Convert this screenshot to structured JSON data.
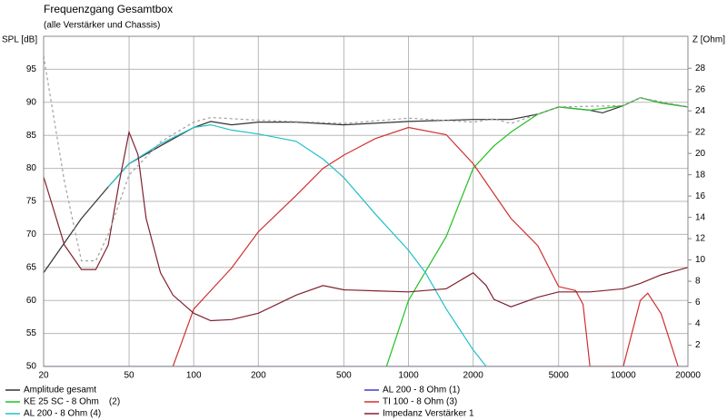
{
  "chart_data": {
    "type": "line",
    "title": "Frequenzgang Gesamtbox",
    "subtitle": "(alle Verstärker und Chassis)",
    "ylabel": "SPL [dB]",
    "y2label": "Z [Ohm]",
    "xscale": "log",
    "grid": true,
    "xlim": [
      20,
      20000
    ],
    "xticks": [
      20,
      50,
      100,
      200,
      500,
      1000,
      2000,
      5000,
      10000,
      20000
    ],
    "ylim": [
      50,
      100
    ],
    "yticks": [
      50,
      55,
      60,
      65,
      70,
      75,
      80,
      85,
      90,
      95
    ],
    "y2lim": [
      0,
      31
    ],
    "y2ticks": [
      2,
      4,
      6,
      8,
      10,
      12,
      14,
      16,
      18,
      20,
      22,
      24,
      26,
      28
    ],
    "series": [
      {
        "name": "Amplitude gesamt",
        "color": "#333333",
        "x": [
          20,
          30,
          40,
          50,
          70,
          100,
          120,
          150,
          200,
          300,
          500,
          1000,
          2000,
          3000,
          4000,
          5000,
          7000,
          8000,
          10000,
          12000,
          15000,
          20000
        ],
        "values": [
          64.2,
          72.4,
          77.2,
          80.7,
          83.4,
          86.2,
          87.1,
          86.6,
          87,
          87,
          86.6,
          87.1,
          87.4,
          87.4,
          88.2,
          89.3,
          88.8,
          88.4,
          89.5,
          90.7,
          89.9,
          89.3
        ]
      },
      {
        "name": "AL 200 - 8 Ohm (1)",
        "color": "#3b3bd0",
        "x": [
          20,
          20000
        ],
        "values": [
          50,
          50
        ]
      },
      {
        "name": "KE 25 SC - 8 Ohm    (2)",
        "color": "#22c022",
        "x": [
          790,
          1000,
          1500,
          2000,
          2500,
          3000,
          4000,
          5000,
          7000,
          10000,
          12000,
          15000,
          20000
        ],
        "values": [
          50,
          60,
          69.7,
          80,
          83.4,
          85.5,
          88.2,
          89.3,
          88.8,
          89.5,
          90.7,
          89.9,
          89.3
        ]
      },
      {
        "name": "TI 100 - 8 Ohm (3)",
        "color": "#d03030",
        "x": [
          80,
          100,
          150,
          200,
          300,
          400,
          500,
          700,
          1000,
          1500,
          2000,
          3000,
          4000,
          5000,
          6000,
          6500,
          7000,
          10000,
          12000,
          13000,
          15000,
          18000
        ],
        "values": [
          50,
          58.7,
          64.9,
          70.4,
          75.9,
          80,
          82,
          84.5,
          86.2,
          85.1,
          80.7,
          72.4,
          68.3,
          62.1,
          61.5,
          59.4,
          50,
          50,
          60,
          61.1,
          58,
          50
        ]
      },
      {
        "name": "AL 200 - 8 Ohm (4)",
        "color": "#20c0c8",
        "x": [
          40,
          50,
          70,
          100,
          120,
          150,
          200,
          300,
          400,
          500,
          700,
          1000,
          1200,
          1500,
          2000,
          2300
        ],
        "values": [
          77.2,
          80.7,
          83.7,
          86.2,
          86.6,
          85.8,
          85.2,
          84.1,
          81.4,
          78.6,
          73.1,
          67.6,
          64.2,
          58.7,
          52.5,
          50
        ]
      },
      {
        "name": "Impedanz Verstärker 1",
        "color": "#802030",
        "axis": "y2",
        "x": [
          20,
          25,
          30,
          35,
          40,
          45,
          50,
          55,
          60,
          70,
          80,
          100,
          120,
          150,
          200,
          300,
          400,
          500,
          700,
          1000,
          1500,
          2000,
          2300,
          2500,
          3000,
          4000,
          5000,
          7000,
          10000,
          12000,
          15000,
          20000
        ],
        "values": [
          17.8,
          11.4,
          9.1,
          9.1,
          11.4,
          17.3,
          22,
          19.9,
          13.9,
          8.8,
          6.7,
          5,
          4.3,
          4.4,
          5,
          6.7,
          7.6,
          7.2,
          7.1,
          7,
          7.3,
          8.8,
          7.6,
          6.3,
          5.6,
          6.5,
          7,
          7,
          7.3,
          7.8,
          8.6,
          9.3
        ]
      },
      {
        "color": "#a0a0a0",
        "dashed": true,
        "x": [
          20,
          25,
          30,
          35,
          40,
          50,
          70,
          100,
          120,
          200,
          500,
          1000,
          2000,
          2500,
          3000,
          5000,
          10000,
          12000,
          20000
        ],
        "values": [
          97,
          78,
          66,
          66,
          70,
          79,
          84,
          87,
          87.7,
          87.3,
          86.8,
          87.6,
          87,
          87.5,
          86.8,
          89.3,
          89.5,
          90.7,
          89.3
        ]
      }
    ]
  }
}
